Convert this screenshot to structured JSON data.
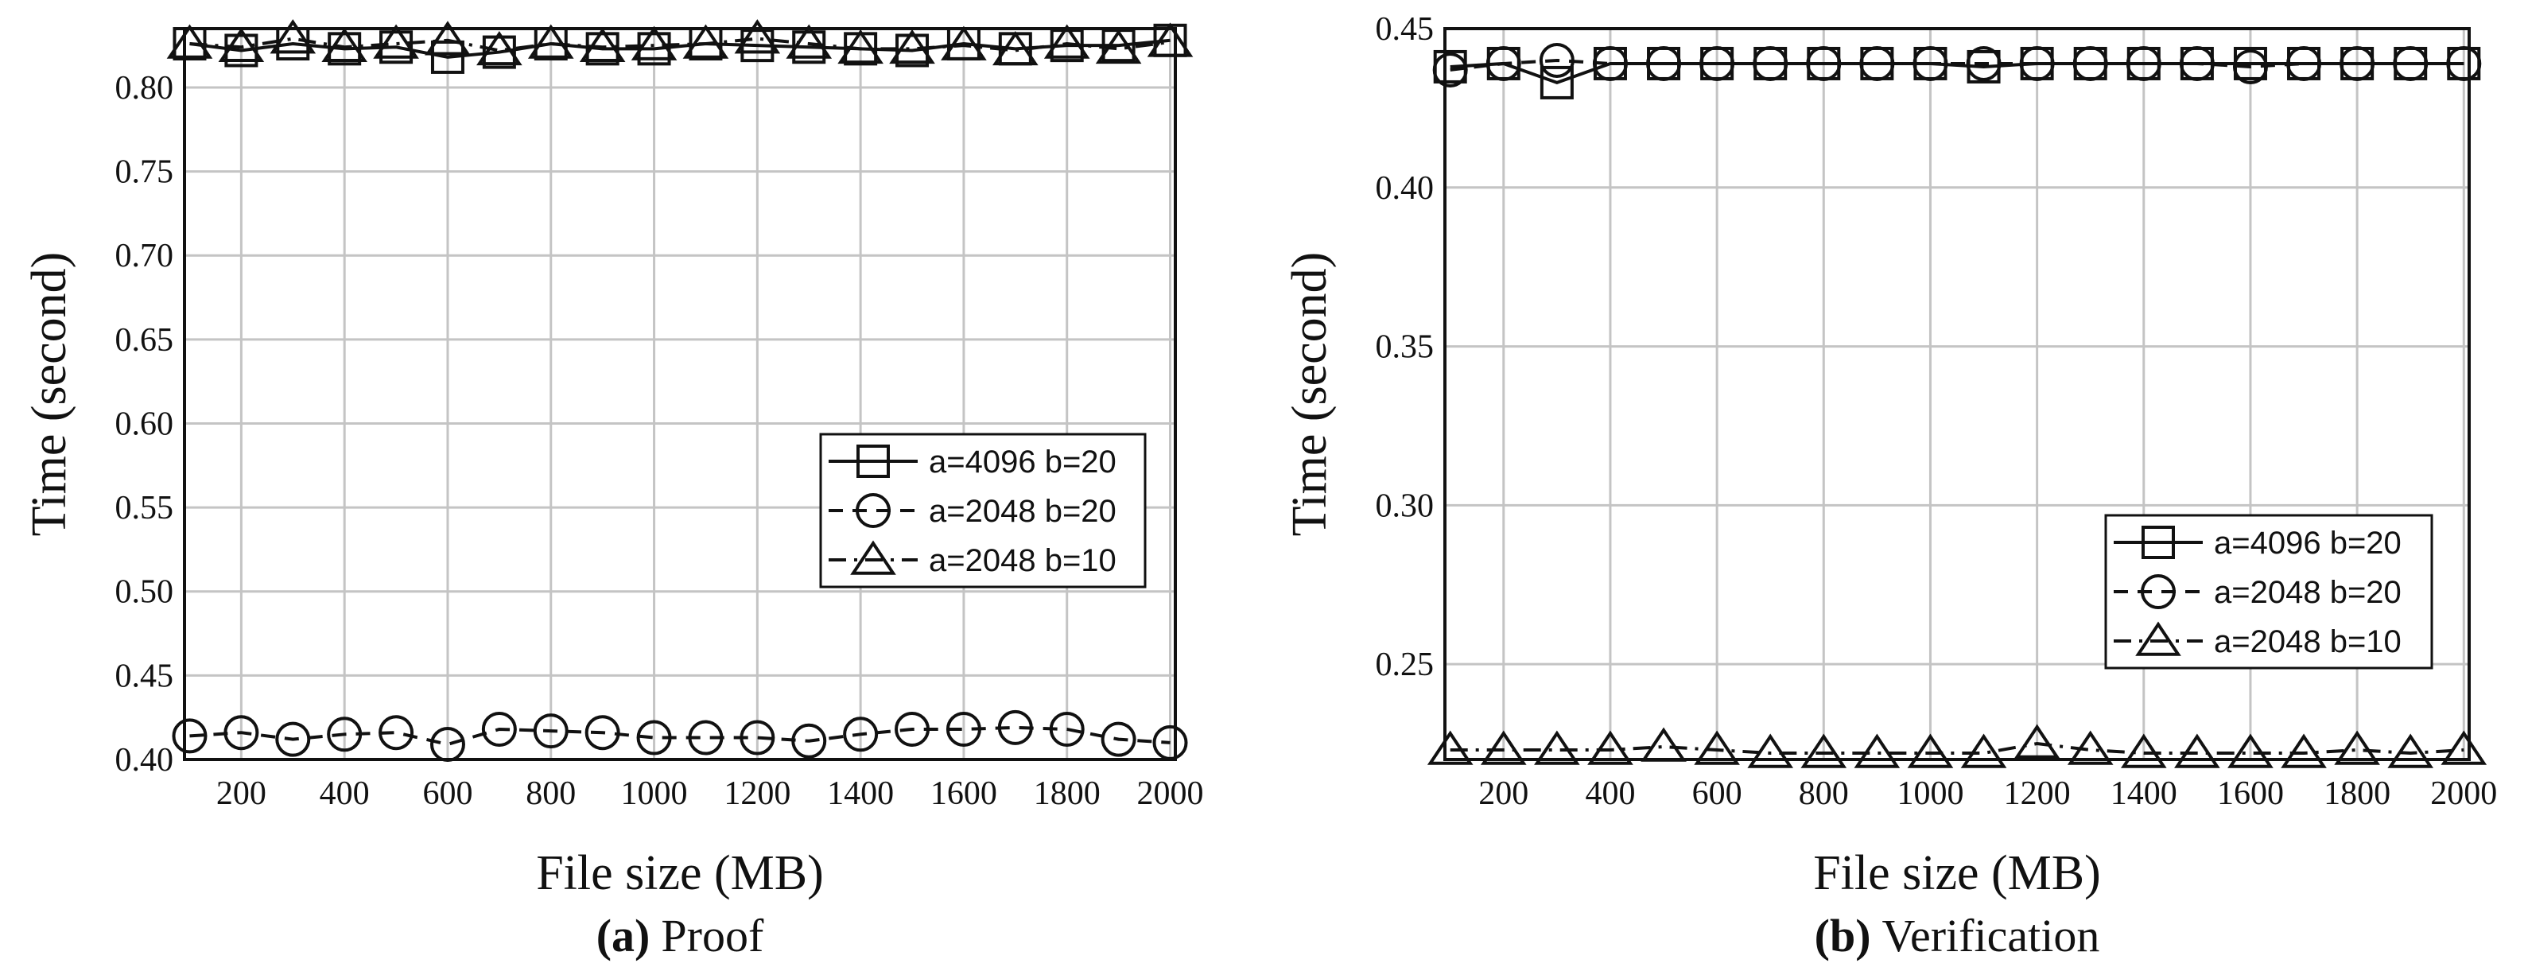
{
  "chart_data": [
    {
      "id": "a",
      "type": "line",
      "caption_letter": "(a)",
      "caption_text": "Proof",
      "xlabel": "File size (MB)",
      "ylabel": "Time (second)",
      "xlim": [
        90,
        2010
      ],
      "ylim": [
        0.4,
        0.835
      ],
      "xticks": [
        200,
        400,
        600,
        800,
        1000,
        1200,
        1400,
        1600,
        1800,
        2000
      ],
      "yticks": [
        0.4,
        0.45,
        0.5,
        0.55,
        0.6,
        0.65,
        0.7,
        0.75,
        0.8
      ],
      "ytick_labels": [
        "0.40",
        "0.45",
        "0.50",
        "0.55",
        "0.60",
        "0.65",
        "0.70",
        "0.75",
        "0.80"
      ],
      "grid": true,
      "legend_position": "middle-right",
      "x": [
        100,
        200,
        300,
        400,
        500,
        600,
        700,
        800,
        900,
        1000,
        1100,
        1200,
        1300,
        1400,
        1500,
        1600,
        1700,
        1800,
        1900,
        2000
      ],
      "series": [
        {
          "name": "a=4096 b=20",
          "marker": "square",
          "dash": "solid",
          "values": [
            0.826,
            0.822,
            0.826,
            0.823,
            0.824,
            0.818,
            0.821,
            0.826,
            0.823,
            0.823,
            0.826,
            0.825,
            0.824,
            0.823,
            0.822,
            0.826,
            0.823,
            0.825,
            0.825,
            0.828
          ]
        },
        {
          "name": "a=2048 b=20",
          "marker": "circle",
          "dash": "dashed",
          "values": [
            0.414,
            0.416,
            0.412,
            0.415,
            0.416,
            0.409,
            0.418,
            0.417,
            0.416,
            0.413,
            0.413,
            0.413,
            0.411,
            0.415,
            0.418,
            0.418,
            0.419,
            0.418,
            0.412,
            0.41
          ]
        },
        {
          "name": "a=2048 b=10",
          "marker": "triangle",
          "dash": "dashdot",
          "values": [
            0.826,
            0.824,
            0.829,
            0.824,
            0.826,
            0.828,
            0.822,
            0.826,
            0.824,
            0.825,
            0.826,
            0.829,
            0.826,
            0.823,
            0.823,
            0.825,
            0.822,
            0.826,
            0.823,
            0.827
          ]
        }
      ]
    },
    {
      "id": "b",
      "type": "line",
      "caption_letter": "(b)",
      "caption_text": "Verification",
      "xlabel": "File size (MB)",
      "ylabel": "Time (second)",
      "xlim": [
        90,
        2010
      ],
      "ylim": [
        0.22,
        0.45
      ],
      "xticks": [
        200,
        400,
        600,
        800,
        1000,
        1200,
        1400,
        1600,
        1800,
        2000
      ],
      "yticks": [
        0.25,
        0.3,
        0.35,
        0.4,
        0.45
      ],
      "ytick_labels": [
        "0.25",
        "0.30",
        "0.35",
        "0.40",
        "0.45"
      ],
      "grid": true,
      "legend_position": "lower-right",
      "x": [
        100,
        200,
        300,
        400,
        500,
        600,
        700,
        800,
        900,
        1000,
        1100,
        1200,
        1300,
        1400,
        1500,
        1600,
        1700,
        1800,
        1900,
        2000
      ],
      "series": [
        {
          "name": "a=4096 b=20",
          "marker": "square",
          "dash": "solid",
          "values": [
            0.438,
            0.439,
            0.433,
            0.439,
            0.439,
            0.439,
            0.439,
            0.439,
            0.439,
            0.439,
            0.438,
            0.439,
            0.439,
            0.439,
            0.439,
            0.439,
            0.439,
            0.439,
            0.439,
            0.439
          ]
        },
        {
          "name": "a=2048 b=20",
          "marker": "circle",
          "dash": "dashed",
          "values": [
            0.437,
            0.439,
            0.44,
            0.439,
            0.439,
            0.439,
            0.439,
            0.439,
            0.439,
            0.439,
            0.439,
            0.439,
            0.439,
            0.439,
            0.439,
            0.438,
            0.439,
            0.439,
            0.439,
            0.439
          ]
        },
        {
          "name": "a=2048 b=10",
          "marker": "triangle",
          "dash": "dashdot",
          "values": [
            0.223,
            0.223,
            0.223,
            0.223,
            0.224,
            0.223,
            0.222,
            0.222,
            0.222,
            0.222,
            0.222,
            0.225,
            0.223,
            0.222,
            0.222,
            0.222,
            0.222,
            0.223,
            0.222,
            0.223
          ]
        }
      ]
    }
  ]
}
